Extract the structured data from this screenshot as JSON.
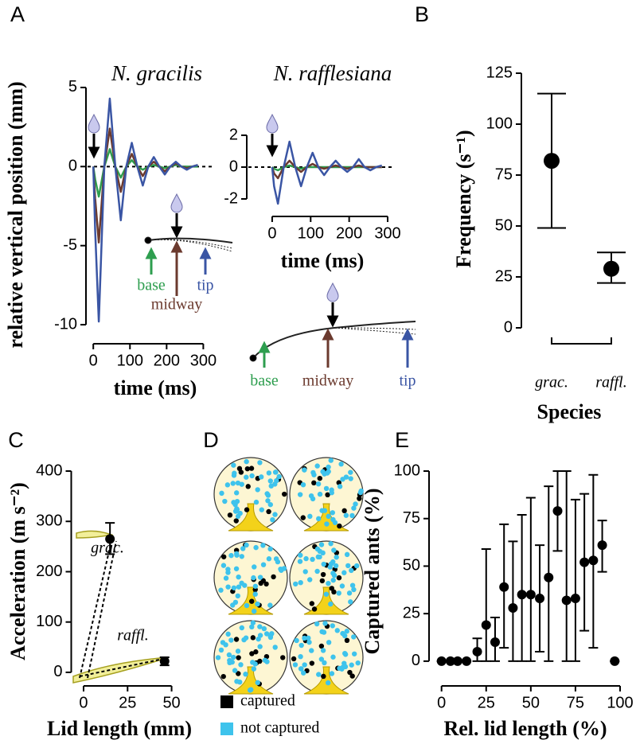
{
  "panel_labels": [
    "A",
    "B",
    "C",
    "D",
    "E"
  ],
  "chart_data": [
    {
      "type": "line",
      "title": "N. gracilis",
      "ylabel": "relative vertical position (mm)",
      "xlabel": "time (ms)",
      "x": [
        0,
        5,
        15,
        30,
        45,
        60,
        75,
        90,
        105,
        120,
        135,
        150,
        165,
        180,
        195,
        210,
        225,
        240,
        255,
        270,
        285
      ],
      "series": [
        {
          "name": "base",
          "color": "#2e9e4f",
          "values": [
            0,
            -0.8,
            -1.9,
            0,
            1.1,
            0,
            -0.7,
            0,
            0.4,
            0,
            -0.2,
            0,
            0.1,
            0,
            -0.1,
            0,
            0.1,
            0,
            0,
            0,
            0
          ]
        },
        {
          "name": "midway",
          "color": "#6b3a2e",
          "values": [
            0,
            -2,
            -4.8,
            0,
            2.4,
            0,
            -1.6,
            0,
            0.8,
            0,
            -0.6,
            0,
            0.3,
            0,
            -0.3,
            0,
            0.2,
            0,
            -0.1,
            0,
            0.1
          ]
        },
        {
          "name": "tip",
          "color": "#3a55a4",
          "values": [
            0,
            -4,
            -9.8,
            0,
            4.3,
            0,
            -3.4,
            0,
            1.5,
            0,
            -1.2,
            0,
            0.6,
            0,
            -0.5,
            0,
            0.3,
            0,
            -0.2,
            0,
            0.1
          ]
        }
      ],
      "xlim": [
        -20,
        310
      ],
      "ylim": [
        -10.5,
        5.5
      ],
      "xticks": [
        0,
        100,
        200,
        300
      ],
      "yticks": [
        -10,
        -5,
        0,
        5
      ],
      "reference_line": 0
    },
    {
      "type": "line",
      "title": "N. rafflesiana",
      "xlabel": "time (ms)",
      "x": [
        0,
        5,
        15,
        30,
        45,
        60,
        75,
        90,
        105,
        120,
        135,
        150,
        165,
        180,
        195,
        210,
        225,
        240,
        255,
        270,
        285
      ],
      "series": [
        {
          "name": "base",
          "color": "#2e9e4f",
          "values": [
            0,
            -0.1,
            -0.2,
            0,
            0.1,
            0,
            -0.1,
            0,
            0,
            0,
            0,
            0,
            0,
            0,
            0,
            0,
            0,
            0,
            0,
            0,
            0
          ]
        },
        {
          "name": "midway",
          "color": "#6b3a2e",
          "values": [
            0,
            -0.4,
            -0.7,
            0,
            0.4,
            0,
            -0.3,
            0,
            0.2,
            0,
            -0.1,
            0,
            0.1,
            0,
            -0.1,
            0,
            0.1,
            0,
            0,
            0,
            0
          ]
        },
        {
          "name": "tip",
          "color": "#3a55a4",
          "values": [
            0,
            -1.2,
            -2.3,
            0,
            1.6,
            0,
            -1.2,
            0,
            0.9,
            0,
            -0.5,
            0,
            0.4,
            0,
            -0.3,
            0,
            0.5,
            0,
            -0.2,
            0,
            0.1
          ]
        }
      ],
      "xlim": [
        -66,
        300
      ],
      "ylim": [
        -2.5,
        2.5
      ],
      "xticks": [
        0,
        100,
        200,
        300
      ],
      "yticks": [
        -2,
        0,
        2
      ],
      "reference_line": 0
    },
    {
      "type": "errorbar",
      "ylabel": "Frequency (s⁻¹)",
      "xlabel": "Species",
      "categories": [
        "grac.",
        "raffl."
      ],
      "values": [
        82,
        29
      ],
      "lower": [
        49,
        22
      ],
      "upper": [
        115,
        37
      ],
      "ylim": [
        0,
        125
      ],
      "yticks": [
        0,
        25,
        50,
        75,
        100,
        125
      ],
      "color": "#000000"
    },
    {
      "type": "scatter",
      "ylabel": "Acceleration (m s⁻²)",
      "xlabel": "Lid length (mm)",
      "x": [
        15,
        46
      ],
      "values": [
        265,
        22
      ],
      "lower": [
        235,
        14
      ],
      "upper": [
        297,
        30
      ],
      "annotations": [
        "grac.",
        "raffl."
      ],
      "xlim": [
        -7,
        52
      ],
      "ylim": [
        -8,
        400
      ],
      "xticks": [
        0,
        25,
        50
      ],
      "yticks": [
        0,
        100,
        200,
        300,
        400
      ],
      "color": "#000000"
    },
    {
      "type": "scatter",
      "ylabel": "Captured ants (%)",
      "xlabel": "Rel. lid length (%)",
      "x": [
        0,
        5,
        9,
        14,
        20,
        25,
        30,
        35,
        40,
        45,
        50,
        55,
        60,
        65,
        70,
        75,
        80,
        85,
        90,
        97
      ],
      "values": [
        0,
        0,
        0,
        0,
        5,
        19,
        10,
        39,
        28,
        35,
        35,
        33,
        44,
        79,
        32,
        33,
        52,
        53,
        61,
        0
      ],
      "lower": [
        0,
        0,
        0,
        0,
        0,
        0,
        0,
        7,
        0,
        0,
        0,
        5,
        0,
        58,
        0,
        0,
        16,
        7,
        47,
        0
      ],
      "upper": [
        0,
        0,
        0,
        0,
        12,
        59,
        23,
        72,
        63,
        77,
        86,
        61,
        92,
        100,
        100,
        85,
        88,
        98,
        74,
        0
      ],
      "xlim": [
        -7,
        100
      ],
      "ylim": [
        -8,
        100
      ],
      "xticks": [
        0,
        25,
        50,
        75,
        100
      ],
      "yticks": [
        0,
        25,
        50,
        75,
        100
      ],
      "color": "#000000"
    }
  ],
  "panel_d": {
    "legend": [
      {
        "label": "captured",
        "color": "#000000"
      },
      {
        "label": "not captured",
        "color": "#3ec3ec"
      }
    ]
  }
}
